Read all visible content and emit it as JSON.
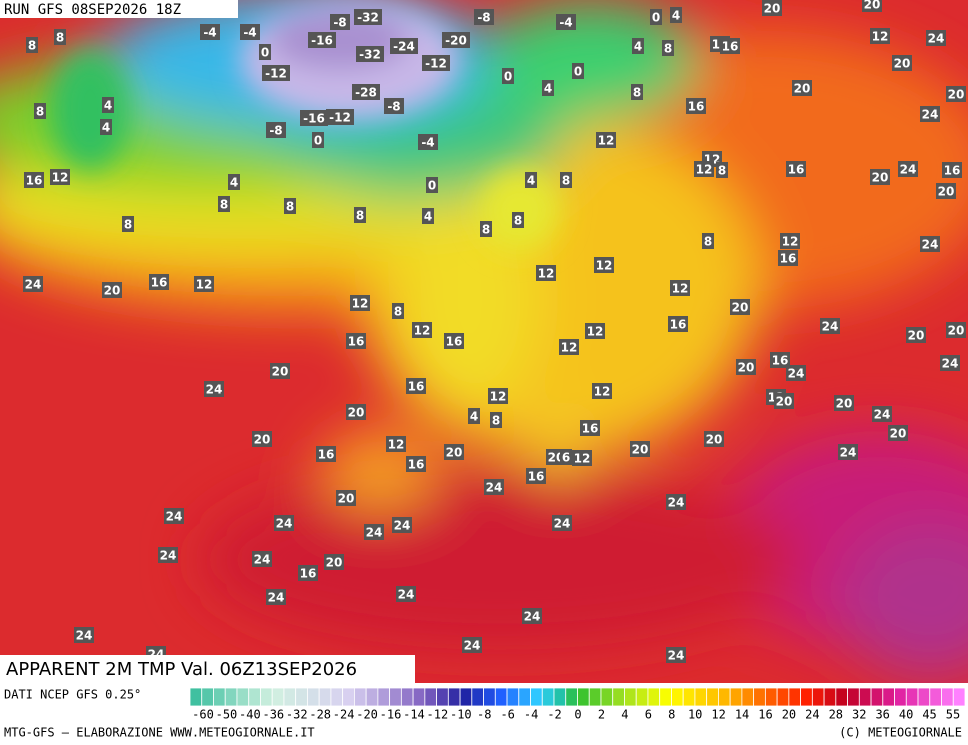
{
  "header": {
    "run": "RUN GFS 08SEP2026 18Z"
  },
  "map": {
    "labels": [
      -4,
      -4,
      -8,
      -32,
      -16,
      -32,
      -24,
      -20,
      -12,
      -8,
      -4,
      0,
      4,
      20,
      20,
      8,
      8,
      0,
      -12,
      -28,
      -8,
      -16,
      -12,
      -8,
      0,
      -4,
      0,
      4,
      0,
      4,
      8,
      8,
      12,
      16,
      12,
      24,
      20,
      20,
      16,
      20,
      24,
      4,
      8,
      4,
      16,
      12,
      4,
      8,
      8,
      8,
      4,
      0,
      4,
      8,
      12,
      12,
      12,
      8,
      16,
      20,
      24,
      16,
      20,
      8,
      8,
      8,
      8,
      12,
      16,
      24,
      24,
      20,
      16,
      12,
      12,
      8,
      12,
      12,
      12,
      20,
      24,
      20,
      20,
      12,
      16,
      16,
      12,
      12,
      16,
      20,
      16,
      24,
      24,
      20,
      24,
      16,
      12,
      12,
      12,
      20,
      20,
      24,
      20,
      20,
      4,
      8,
      20,
      16,
      12,
      16,
      20,
      16,
      20,
      20,
      20,
      6,
      12,
      24,
      20,
      24,
      16,
      24,
      24,
      24,
      24,
      24,
      24,
      24,
      24,
      20,
      16,
      24,
      24,
      24,
      24,
      24,
      24,
      24
    ]
  },
  "legend": {
    "labels": [
      -60,
      -50,
      -40,
      -36,
      -32,
      -28,
      -24,
      -20,
      -16,
      -14,
      -12,
      -10,
      -8,
      -6,
      -4,
      -2,
      0,
      2,
      4,
      6,
      8,
      10,
      12,
      14,
      16,
      20,
      24,
      28,
      32,
      36,
      40,
      45,
      55
    ]
  },
  "footer": {
    "title": "APPARENT 2M TMP Val. 06Z13SEP2026",
    "source": "DATI NCEP GFS 0.25°",
    "credit": "MTG-GFS — ELABORAZIONE WWW.METEOGIORNALE.IT",
    "copyright": "(C) METEOGIORNALE"
  }
}
